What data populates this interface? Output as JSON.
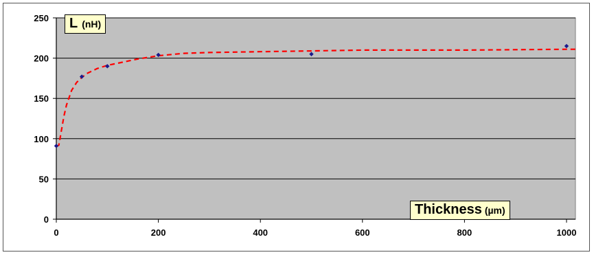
{
  "chart_data": {
    "type": "scatter",
    "xlabel": "Thickness",
    "xunit": "(µm)",
    "ylabel": "L",
    "yunit": "(nH)",
    "xlim": [
      0,
      1000
    ],
    "ylim": [
      0,
      250
    ],
    "xticks": [
      0,
      200,
      400,
      600,
      800,
      1000
    ],
    "yticks": [
      0,
      50,
      100,
      150,
      200,
      250
    ],
    "grid": "horizontal",
    "plot_background": "#c0c0c0",
    "marker_color": "#1a1a8c",
    "fit_color": "#ff0000",
    "points": [
      {
        "x": 0,
        "y": 91
      },
      {
        "x": 50,
        "y": 177
      },
      {
        "x": 100,
        "y": 190
      },
      {
        "x": 200,
        "y": 204
      },
      {
        "x": 500,
        "y": 205
      },
      {
        "x": 1000,
        "y": 215
      }
    ],
    "fit_curve": {
      "style": "dashed",
      "x": [
        0,
        5,
        10,
        15,
        20,
        30,
        40,
        50,
        60,
        80,
        100,
        130,
        160,
        200,
        250,
        300,
        400,
        500,
        600,
        800,
        1000,
        1020
      ],
      "y": [
        90,
        92,
        110,
        128,
        142,
        160,
        170,
        176,
        181,
        187,
        191,
        195,
        199,
        203,
        206,
        207,
        208,
        209,
        210,
        210,
        211,
        211
      ]
    }
  }
}
